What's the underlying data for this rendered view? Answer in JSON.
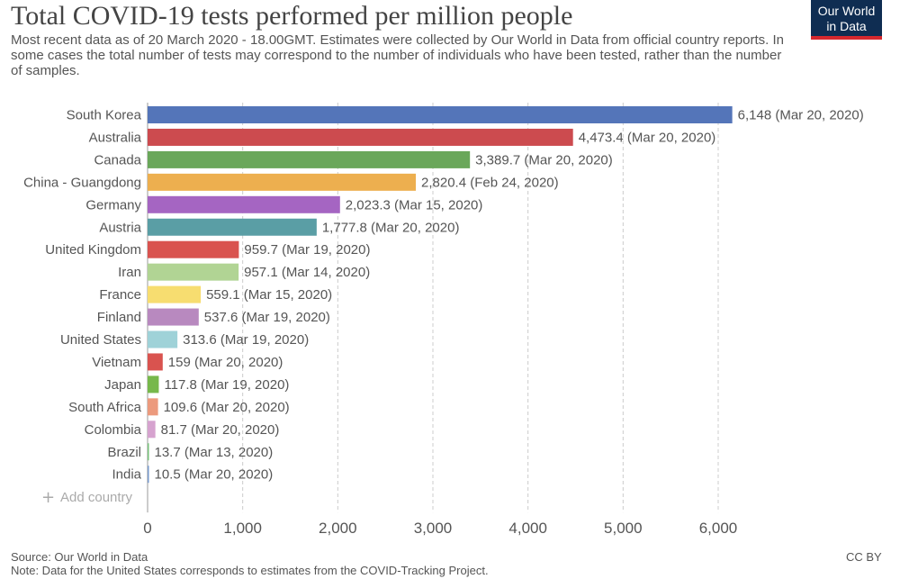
{
  "header": {
    "title": "Total COVID-19 tests performed per million people",
    "subtitle": "Most recent data as of 20 March 2020 - 18.00GMT. Estimates were collected by Our World in Data from official country reports. In some cases the total number of tests may correspond to the number of individuals who have been tested, rather than the number of samples.",
    "logo_line1": "Our World",
    "logo_line2": "in Data",
    "logo_bg": "#0f2d52",
    "logo_accent": "#d6282e"
  },
  "controls": {
    "add_country_label": "Add country",
    "add_country_icon": "plus-icon"
  },
  "footer": {
    "source": "Source: Our World in Data",
    "note": "Note: Data for the United States corresponds to estimates from the COVID-Tracking Project.",
    "license": "CC BY"
  },
  "chart_data": {
    "type": "bar",
    "orientation": "horizontal",
    "xlim": [
      0,
      6000
    ],
    "xticks": [
      "0",
      "1,000",
      "2,000",
      "3,000",
      "4,000",
      "5,000",
      "6,000"
    ],
    "xtick_values": [
      0,
      1000,
      2000,
      3000,
      4000,
      5000,
      6000
    ],
    "grid": true,
    "categories": [
      "South Korea",
      "Australia",
      "Canada",
      "China - Guangdong",
      "Germany",
      "Austria",
      "United Kingdom",
      "Iran",
      "France",
      "Finland",
      "United States",
      "Vietnam",
      "Japan",
      "South Africa",
      "Colombia",
      "Brazil",
      "India"
    ],
    "values": [
      6148,
      4473.4,
      3389.7,
      2820.4,
      2023.3,
      1777.8,
      959.7,
      957.1,
      559.1,
      537.6,
      313.6,
      159,
      117.8,
      109.6,
      81.7,
      13.7,
      10.5
    ],
    "value_labels": [
      "6,148 (Mar 20, 2020)",
      "4,473.4 (Mar 20, 2020)",
      "3,389.7 (Mar 20, 2020)",
      "2,820.4 (Feb 24, 2020)",
      "2,023.3 (Mar 15, 2020)",
      "1,777.8 (Mar 20, 2020)",
      "959.7 (Mar 19, 2020)",
      "957.1 (Mar 14, 2020)",
      "559.1 (Mar 15, 2020)",
      "537.6 (Mar 19, 2020)",
      "313.6 (Mar 19, 2020)",
      "159 (Mar 20, 2020)",
      "117.8 (Mar 19, 2020)",
      "109.6 (Mar 20, 2020)",
      "81.7 (Mar 20, 2020)",
      "13.7 (Mar 13, 2020)",
      "10.5 (Mar 20, 2020)"
    ],
    "colors": [
      "#5475b9",
      "#cc4b4f",
      "#6aa75a",
      "#edaf4f",
      "#a565c2",
      "#5a9ea5",
      "#d9534f",
      "#b1d494",
      "#f7dd70",
      "#b889bf",
      "#9fd2d8",
      "#d9534f",
      "#77b84b",
      "#ec9a7d",
      "#d6a3cf",
      "#77c27a",
      "#7799cc"
    ]
  }
}
